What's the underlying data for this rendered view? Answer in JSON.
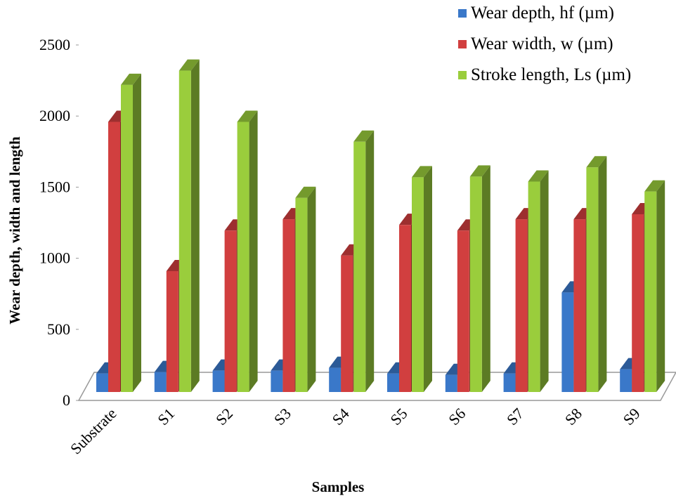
{
  "chart_data": {
    "type": "bar3d",
    "x_label": "Samples",
    "y_label": "Wear  depth, width and length",
    "categories": [
      "Substrate",
      "S1",
      "S2",
      "S3",
      "S4",
      "S5",
      "S6",
      "S7",
      "S8",
      "S9"
    ],
    "series": [
      {
        "name": "Wear depth, hf (µm)",
        "color": "#3a78c9",
        "values": [
          130,
          140,
          150,
          150,
          170,
          130,
          120,
          130,
          700,
          160
        ]
      },
      {
        "name": "Wear width, w (µm)",
        "color": "#d13f3f",
        "values": [
          1900,
          850,
          1135,
          1215,
          960,
          1175,
          1135,
          1215,
          1215,
          1250
        ]
      },
      {
        "name": "Stroke length, Ls (µm)",
        "color": "#9acd3c",
        "values": [
          2160,
          2260,
          1900,
          1365,
          1760,
          1510,
          1515,
          1480,
          1580,
          1410
        ]
      }
    ],
    "ylim": [
      0,
      2500
    ],
    "yticks": [
      0,
      500,
      1000,
      1500,
      2000,
      2500
    ],
    "legend": "top-right"
  }
}
